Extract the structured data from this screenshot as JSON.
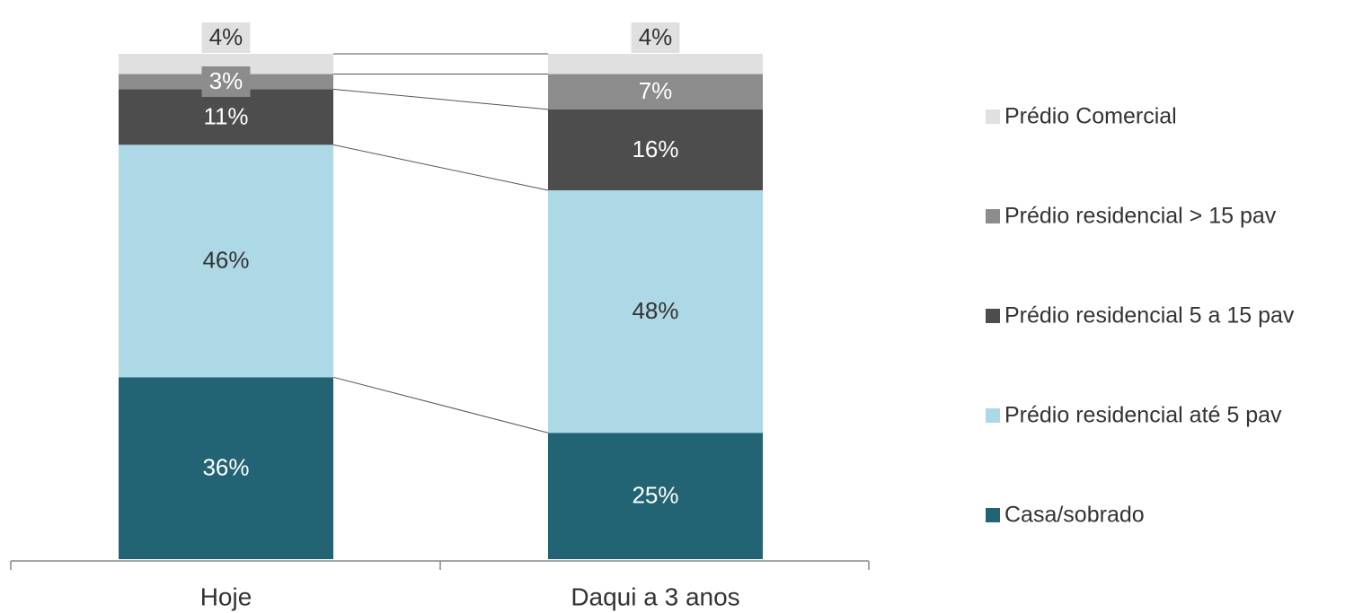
{
  "chart_data": {
    "type": "stacked_bar",
    "categories": [
      "Hoje",
      "Daqui a 3 anos"
    ],
    "series": [
      {
        "name": "Casa/sobrado",
        "color": "#226473",
        "values": [
          36,
          25
        ],
        "value_labels": [
          "36%",
          "25%"
        ]
      },
      {
        "name": "Prédio residencial até 5 pav",
        "color": "#add8e6",
        "values": [
          46,
          48
        ],
        "value_labels": [
          "46%",
          "48%"
        ]
      },
      {
        "name": "Prédio residencial 5 a 15 pav",
        "color": "#4d4d4d",
        "values": [
          11,
          16
        ],
        "value_labels": [
          "11%",
          "16%"
        ]
      },
      {
        "name": "Prédio residencial > 15 pav",
        "color": "#8c8c8c",
        "values": [
          3,
          7
        ],
        "value_labels": [
          "3%",
          "7%"
        ]
      },
      {
        "name": "Prédio Comercial",
        "color": "#e0e0e0",
        "values": [
          4,
          4
        ],
        "value_labels": [
          "4%",
          "4%"
        ]
      }
    ]
  }
}
